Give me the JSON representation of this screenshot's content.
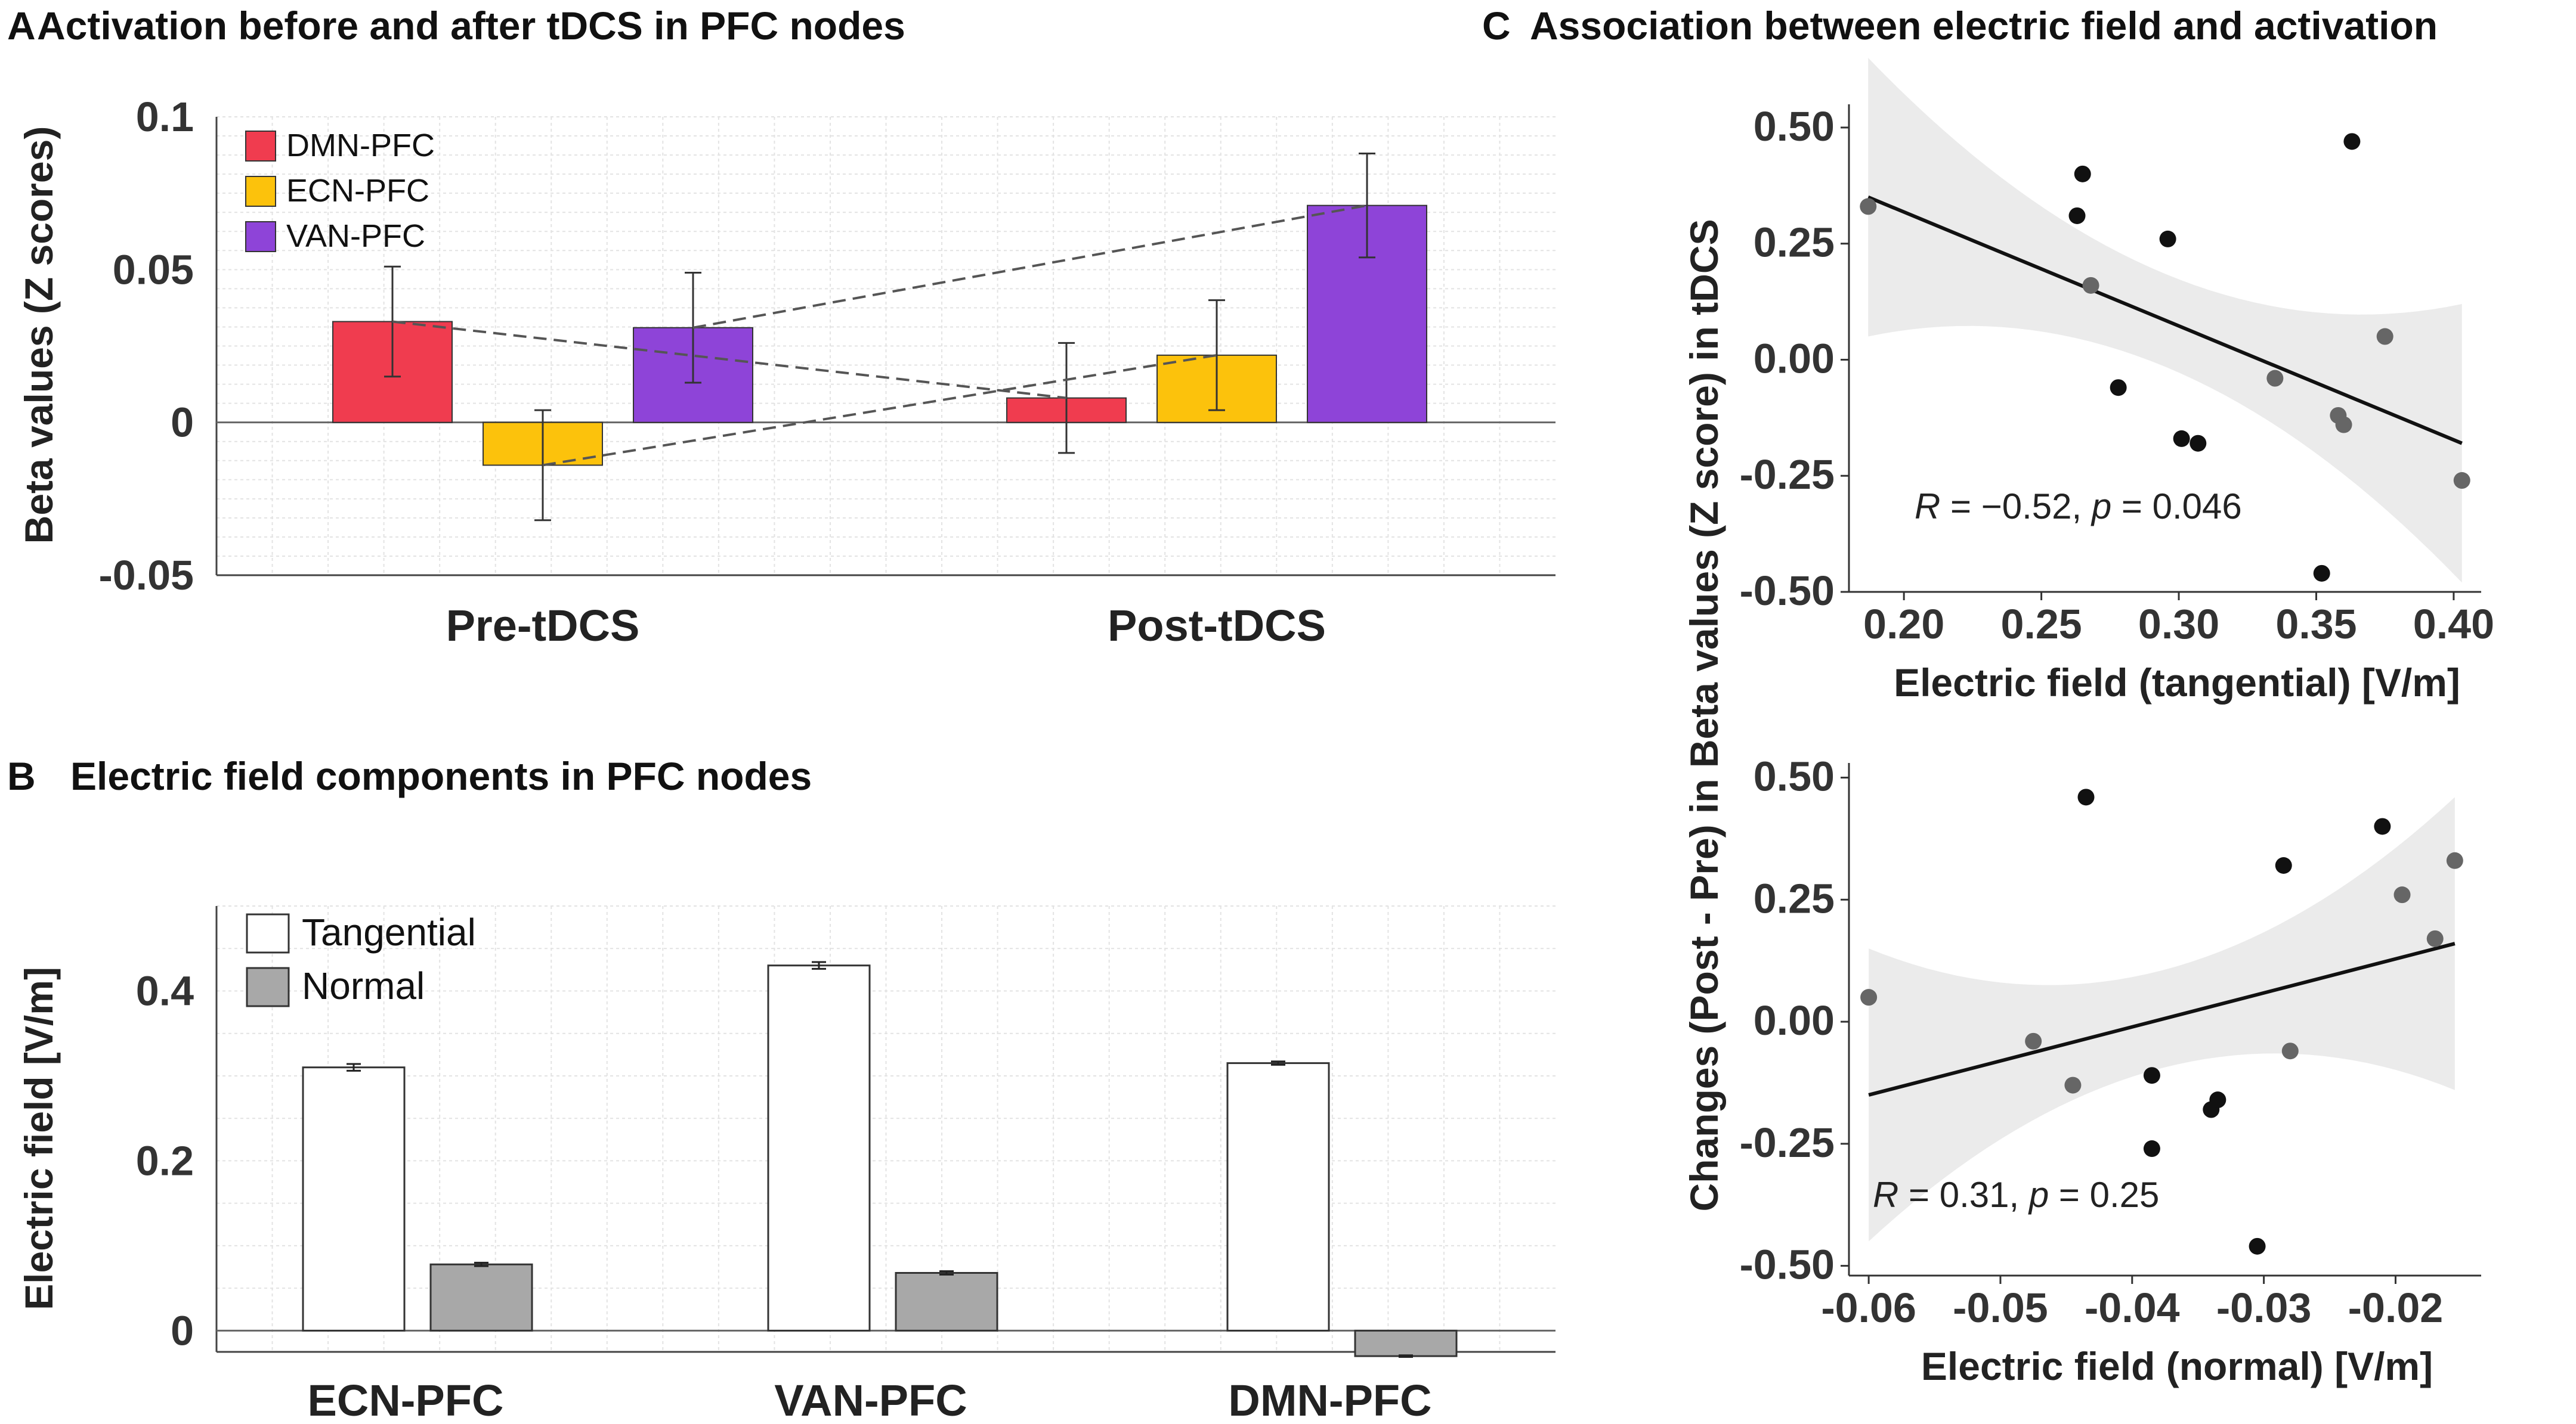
{
  "panels": {
    "A": {
      "letter": "A",
      "title": "Activation before and after tDCS in PFC nodes",
      "ylabel": "Beta values (Z scores)",
      "ylim": [
        -0.05,
        0.1
      ],
      "yticks": [
        {
          "value": 0.1,
          "label": "0.1"
        },
        {
          "value": 0.05,
          "label": "0.05"
        },
        {
          "value": 0,
          "label": "0"
        },
        {
          "value": -0.05,
          "label": "-0.05"
        }
      ]
    },
    "B": {
      "letter": "B",
      "title": "Electric field components in PFC nodes",
      "ylabel": "Electric field [V/m]",
      "ylim": [
        -0.025,
        0.5
      ],
      "yticks": [
        {
          "value": 0.4,
          "label": "0.4"
        },
        {
          "value": 0.2,
          "label": "0.2"
        },
        {
          "value": 0,
          "label": "0"
        }
      ]
    },
    "C": {
      "letter": "C",
      "title": "Association between electric field and activation",
      "ylabel": "Changes (Post - Pre) in Beta values (Z score) in tDCS"
    }
  },
  "chart_data": [
    {
      "id": "A",
      "type": "bar",
      "title": "Activation before and after tDCS in PFC nodes",
      "xlabel": "",
      "ylabel": "Beta values (Z scores)",
      "categories": [
        "Pre-tDCS",
        "Post-tDCS"
      ],
      "series": [
        {
          "name": "DMN-PFC",
          "color": "#f03c4f",
          "values": [
            0.033,
            0.008
          ],
          "errors": [
            0.018,
            0.018
          ]
        },
        {
          "name": "ECN-PFC",
          "color": "#fcc20c",
          "values": [
            -0.014,
            0.022
          ],
          "errors": [
            0.018,
            0.018
          ]
        },
        {
          "name": "VAN-PFC",
          "color": "#8e44d8",
          "values": [
            0.031,
            0.071
          ],
          "errors": [
            0.018,
            0.017
          ]
        }
      ],
      "ylim": [
        -0.05,
        0.1
      ],
      "legend": "top-left",
      "grid": true
    },
    {
      "id": "B",
      "type": "bar",
      "title": "Electric field components in PFC nodes",
      "xlabel": "",
      "ylabel": "Electric field [V/m]",
      "categories": [
        "ECN-PFC",
        "VAN-PFC",
        "DMN-PFC"
      ],
      "series": [
        {
          "name": "Tangential",
          "color": "#ffffff",
          "values": [
            0.31,
            0.43,
            0.315
          ],
          "errors": [
            0.004,
            0.004,
            0.002
          ]
        },
        {
          "name": "Normal",
          "color": "#a8a8a8",
          "values": [
            0.078,
            0.068,
            -0.03
          ],
          "errors": [
            0.002,
            0.002,
            0.001
          ]
        }
      ],
      "ylim": [
        -0.025,
        0.5
      ],
      "legend": "top-left",
      "grid": true
    },
    {
      "id": "C-top",
      "type": "scatter",
      "title": "",
      "xlabel": "Electric field (tangential) [V/m]",
      "ylabel": "",
      "annotation": {
        "R_label": "R",
        "R_value": " = −0.52, ",
        "p_label": "p",
        "p_value": " = 0.046"
      },
      "xlim": [
        0.18,
        0.41
      ],
      "ylim": [
        -0.5,
        0.55
      ],
      "xticks": [
        {
          "value": 0.2,
          "label": "0.20"
        },
        {
          "value": 0.25,
          "label": "0.25"
        },
        {
          "value": 0.3,
          "label": "0.30"
        },
        {
          "value": 0.35,
          "label": "0.35"
        },
        {
          "value": 0.4,
          "label": "0.40"
        }
      ],
      "yticks": [
        {
          "value": 0.5,
          "label": "0.50"
        },
        {
          "value": 0.25,
          "label": "0.25"
        },
        {
          "value": 0,
          "label": "0.00"
        },
        {
          "value": -0.25,
          "label": "-0.25"
        },
        {
          "value": -0.5,
          "label": "-0.50"
        }
      ],
      "points": [
        {
          "x": 0.187,
          "y": 0.33
        },
        {
          "x": 0.263,
          "y": 0.31
        },
        {
          "x": 0.265,
          "y": 0.4
        },
        {
          "x": 0.268,
          "y": 0.16
        },
        {
          "x": 0.278,
          "y": -0.06
        },
        {
          "x": 0.296,
          "y": 0.26
        },
        {
          "x": 0.301,
          "y": -0.17
        },
        {
          "x": 0.307,
          "y": -0.18
        },
        {
          "x": 0.335,
          "y": -0.04
        },
        {
          "x": 0.352,
          "y": -0.46
        },
        {
          "x": 0.358,
          "y": -0.12
        },
        {
          "x": 0.36,
          "y": -0.14
        },
        {
          "x": 0.363,
          "y": 0.47
        },
        {
          "x": 0.375,
          "y": 0.05
        },
        {
          "x": 0.403,
          "y": -0.26
        }
      ],
      "fit": {
        "x": [
          0.187,
          0.403
        ],
        "y": [
          0.35,
          -0.18
        ]
      }
    },
    {
      "id": "C-bottom",
      "type": "scatter",
      "title": "",
      "xlabel": "Electric field (normal) [V/m]",
      "ylabel": "",
      "annotation": {
        "R_label": "R",
        "R_value": " = 0.31, ",
        "p_label": "p",
        "p_value": " = 0.25"
      },
      "xlim": [
        -0.0615,
        -0.0135
      ],
      "ylim": [
        -0.52,
        0.53
      ],
      "xticks": [
        {
          "value": -0.06,
          "label": "-0.06"
        },
        {
          "value": -0.05,
          "label": "-0.05"
        },
        {
          "value": -0.04,
          "label": "-0.04"
        },
        {
          "value": -0.03,
          "label": "-0.03"
        },
        {
          "value": -0.02,
          "label": "-0.02"
        }
      ],
      "yticks": [
        {
          "value": 0.5,
          "label": "0.50"
        },
        {
          "value": 0.25,
          "label": "0.25"
        },
        {
          "value": 0,
          "label": "0.00"
        },
        {
          "value": -0.25,
          "label": "-0.25"
        },
        {
          "value": -0.5,
          "label": "-0.50"
        }
      ],
      "points": [
        {
          "x": -0.06,
          "y": 0.05
        },
        {
          "x": -0.0475,
          "y": -0.04
        },
        {
          "x": -0.0445,
          "y": -0.13
        },
        {
          "x": -0.0435,
          "y": 0.46
        },
        {
          "x": -0.0385,
          "y": -0.11
        },
        {
          "x": -0.0385,
          "y": -0.26
        },
        {
          "x": -0.034,
          "y": -0.18
        },
        {
          "x": -0.0335,
          "y": -0.16
        },
        {
          "x": -0.0305,
          "y": -0.46
        },
        {
          "x": -0.0285,
          "y": 0.32
        },
        {
          "x": -0.028,
          "y": -0.06
        },
        {
          "x": -0.021,
          "y": 0.4
        },
        {
          "x": -0.0195,
          "y": 0.26
        },
        {
          "x": -0.017,
          "y": 0.17
        },
        {
          "x": -0.0155,
          "y": 0.33
        }
      ],
      "fit": {
        "x": [
          -0.06,
          -0.0155
        ],
        "y": [
          -0.15,
          0.16
        ]
      }
    }
  ]
}
